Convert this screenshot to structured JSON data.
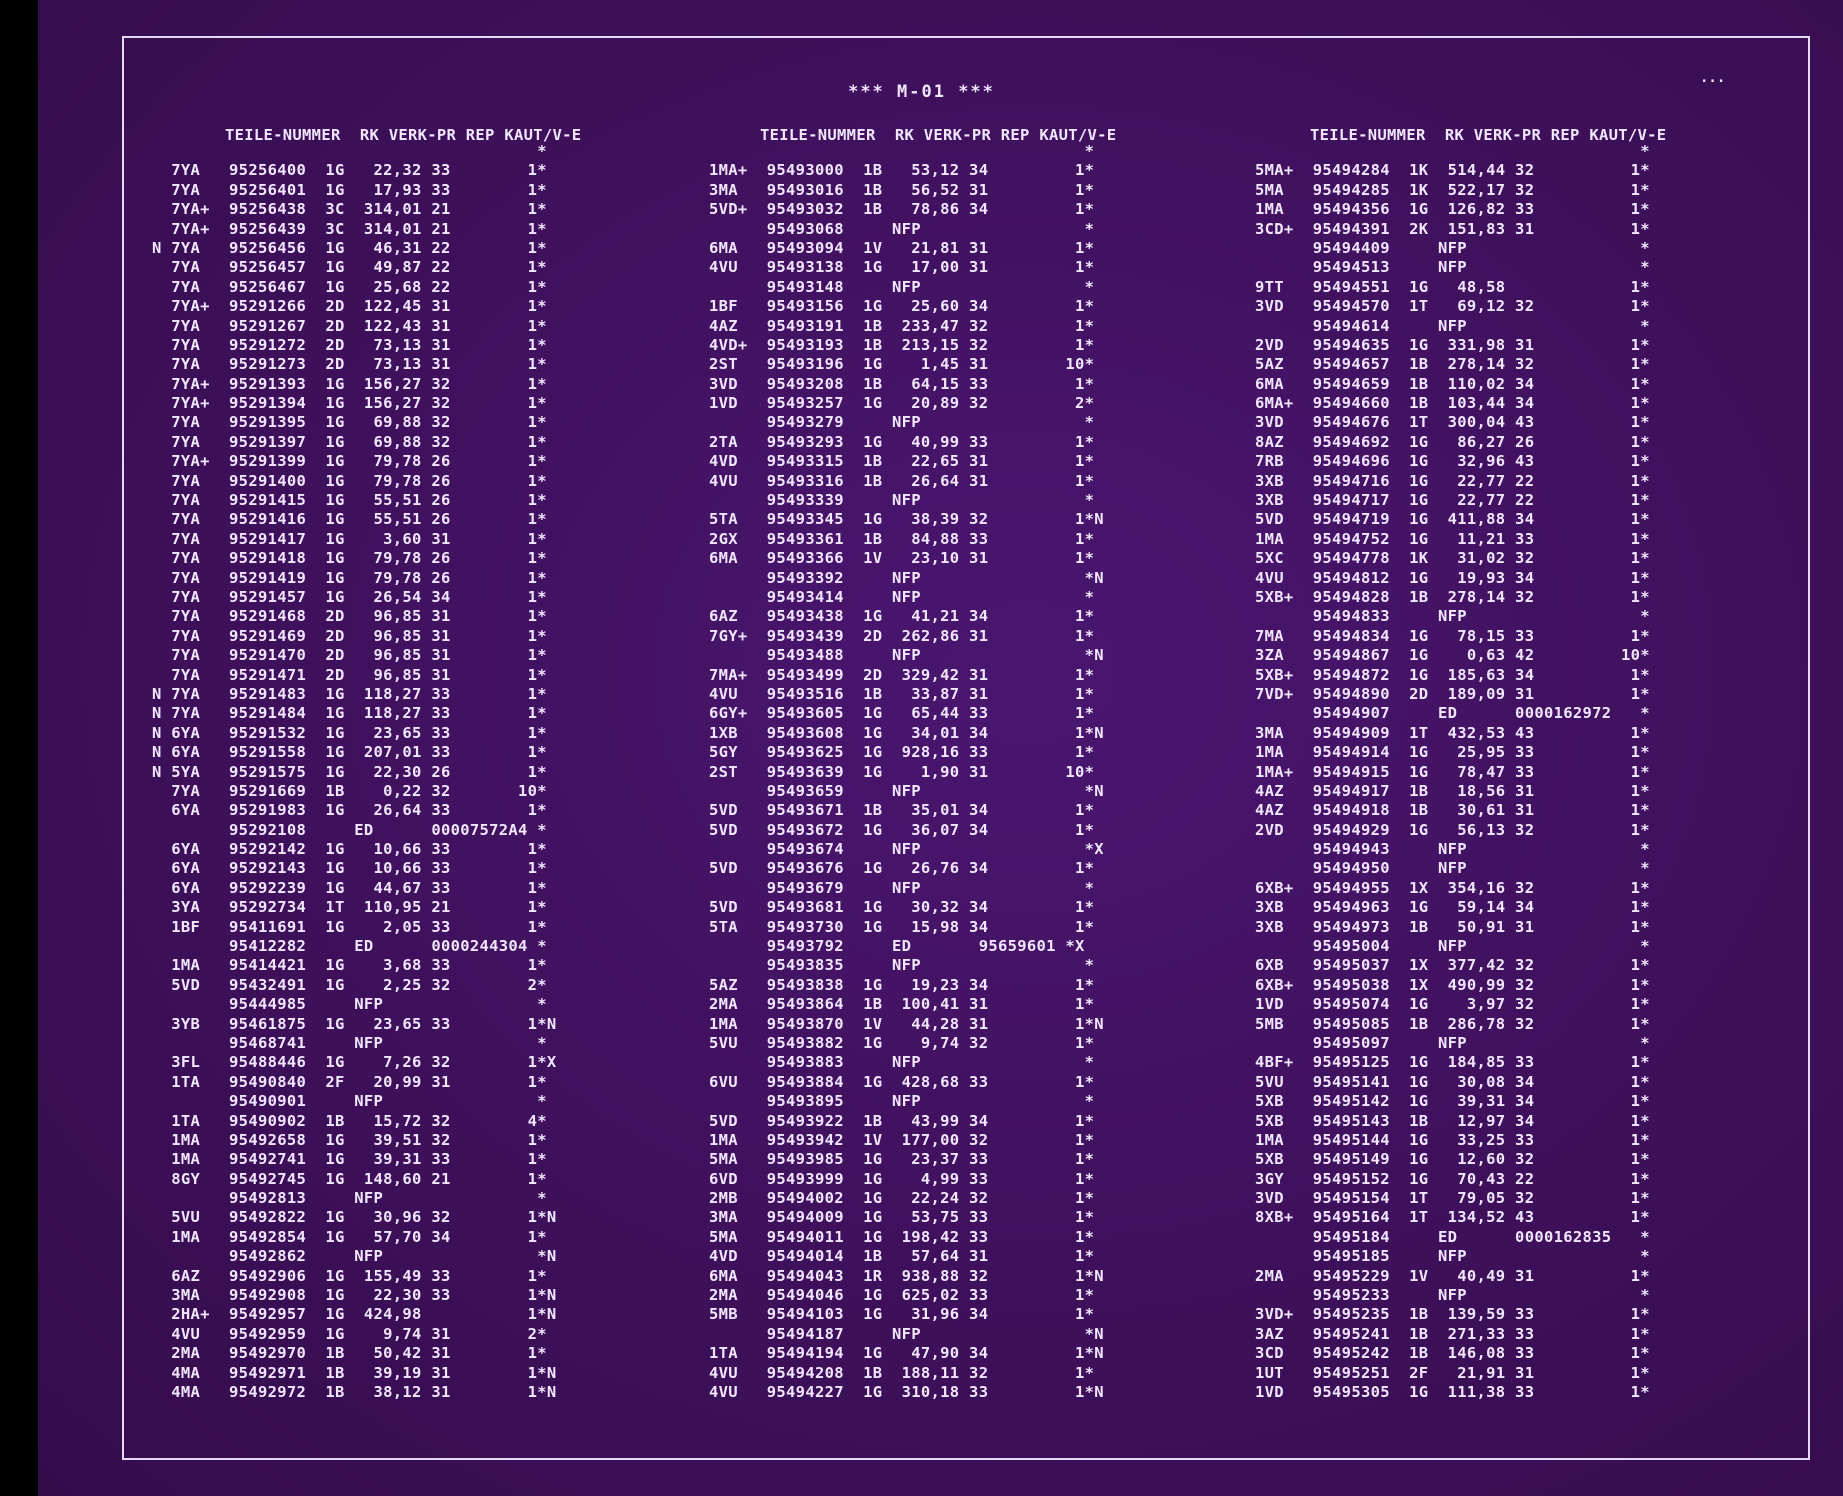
{
  "title": "*** M-01 ***",
  "headers": [
    "TEILE-NUMMER  RK VERK-PR REP KAUT/V-E",
    "TEILE-NUMMER  RK VERK-PR REP KAUT/V-E",
    "TEILE-NUMMER  RK VERK-PR REP KAUT/V-E"
  ],
  "columns": [
    {
      "rows": [
        "                                        *",
        "  7YA   95256400  1G   22,32 33        1*",
        "  7YA   95256401  1G   17,93 33        1*",
        "  7YA+  95256438  3C  314,01 21        1*",
        "  7YA+  95256439  3C  314,01 21        1*",
        "N 7YA   95256456  1G   46,31 22        1*",
        "  7YA   95256457  1G   49,87 22        1*",
        "  7YA   95256467  1G   25,68 22        1*",
        "  7YA+  95291266  2D  122,45 31        1*",
        "  7YA   95291267  2D  122,43 31        1*",
        "  7YA   95291272  2D   73,13 31        1*",
        "  7YA   95291273  2D   73,13 31        1*",
        "  7YA+  95291393  1G  156,27 32        1*",
        "  7YA+  95291394  1G  156,27 32        1*",
        "  7YA   95291395  1G   69,88 32        1*",
        "  7YA   95291397  1G   69,88 32        1*",
        "  7YA+  95291399  1G   79,78 26        1*",
        "  7YA   95291400  1G   79,78 26        1*",
        "  7YA   95291415  1G   55,51 26        1*",
        "  7YA   95291416  1G   55,51 26        1*",
        "  7YA   95291417  1G    3,60 31        1*",
        "  7YA   95291418  1G   79,78 26        1*",
        "  7YA   95291419  1G   79,78 26        1*",
        "  7YA   95291457  1G   26,54 34        1*",
        "  7YA   95291468  2D   96,85 31        1*",
        "  7YA   95291469  2D   96,85 31        1*",
        "  7YA   95291470  2D   96,85 31        1*",
        "  7YA   95291471  2D   96,85 31        1*",
        "N 7YA   95291483  1G  118,27 33        1*",
        "N 7YA   95291484  1G  118,27 33        1*",
        "N 6YA   95291532  1G   23,65 33        1*",
        "N 6YA   95291558  1G  207,01 33        1*",
        "N 5YA   95291575  1G   22,30 26        1*",
        "  7YA   95291669  1B    0,22 32       10*",
        "  6YA   95291983  1G   26,64 33        1*",
        "        95292108     ED      00007572A4 *",
        "  6YA   95292142  1G   10,66 33        1*",
        "  6YA   95292143  1G   10,66 33        1*",
        "  6YA   95292239  1G   44,67 33        1*",
        "  3YA   95292734  1T  110,95 21        1*",
        "  1BF   95411691  1G    2,05 33        1*",
        "        95412282     ED      0000244304 *",
        "  1MA   95414421  1G    3,68 33        1*",
        "  5VD   95432491  1G    2,25 32        2*",
        "        95444985     NFP                *",
        "  3YB   95461875  1G   23,65 33        1*N",
        "        95468741     NFP                *",
        "  3FL   95488446  1G    7,26 32        1*X",
        "  1TA   95490840  2F   20,99 31        1*",
        "        95490901     NFP                *",
        "  1TA   95490902  1B   15,72 32        4*",
        "  1MA   95492658  1G   39,51 32        1*",
        "  1MA   95492741  1G   39,31 33        1*",
        "  8GY   95492745  1G  148,60 21        1*",
        "        95492813     NFP                *",
        "  5VU   95492822  1G   30,96 32        1*N",
        "  1MA   95492854  1G   57,70 34        1*",
        "        95492862     NFP                *N",
        "  6AZ   95492906  1G  155,49 33        1*",
        "  3MA   95492908  1G   22,30 33        1*N",
        "  2HA+  95492957  1G  424,98           1*N",
        "  4VU   95492959  1G    9,74 31        2*",
        "  2MA   95492970  1B   50,42 31        1*",
        "  4MA   95492971  1B   39,19 31        1*N",
        "  4MA   95492972  1B   38,12 31        1*N"
      ]
    },
    {
      "rows": [
        "                                       *",
        "1MA+  95493000  1B   53,12 34         1*",
        "3MA   95493016  1B   56,52 31         1*",
        "5VD+  95493032  1B   78,86 34         1*",
        "      95493068     NFP                 *",
        "6MA   95493094  1V   21,81 31         1*",
        "4VU   95493138  1G   17,00 31         1*",
        "      95493148     NFP                 *",
        "1BF   95493156  1G   25,60 34         1*",
        "4AZ   95493191  1B  233,47 32         1*",
        "4VD+  95493193  1B  213,15 32         1*",
        "2ST   95493196  1G    1,45 31        10*",
        "3VD   95493208  1B   64,15 33         1*",
        "1VD   95493257  1G   20,89 32         2*",
        "      95493279     NFP                 *",
        "2TA   95493293  1G   40,99 33         1*",
        "4VD   95493315  1B   22,65 31         1*",
        "4VU   95493316  1B   26,64 31         1*",
        "      95493339     NFP                 *",
        "5TA   95493345  1G   38,39 32         1*N",
        "2GX   95493361  1B   84,88 33         1*",
        "6MA   95493366  1V   23,10 31         1*",
        "      95493392     NFP                 *N",
        "      95493414     NFP                 *",
        "6AZ   95493438  1G   41,21 34         1*",
        "7GY+  95493439  2D  262,86 31         1*",
        "      95493488     NFP                 *N",
        "7MA+  95493499  2D  329,42 31         1*",
        "4VU   95493516  1B   33,87 31         1*",
        "6GY+  95493605  1G   65,44 33         1*",
        "1XB   95493608  1G   34,01 34         1*N",
        "5GY   95493625  1G  928,16 33         1*",
        "2ST   95493639  1G    1,90 31        10*",
        "      95493659     NFP                 *N",
        "5VD   95493671  1B   35,01 34         1*",
        "5VD   95493672  1G   36,07 34         1*",
        "      95493674     NFP                 *X",
        "5VD   95493676  1G   26,76 34         1*",
        "      95493679     NFP                 *",
        "5VD   95493681  1G   30,32 34         1*",
        "5TA   95493730  1G   15,98 34         1*",
        "      95493792     ED       95659601 *X",
        "      95493835     NFP                 *",
        "5AZ   95493838  1G   19,23 34         1*",
        "2MA   95493864  1B  100,41 31         1*",
        "1MA   95493870  1V   44,28 31         1*N",
        "5VU   95493882  1G    9,74 32         1*",
        "      95493883     NFP                 *",
        "6VU   95493884  1G  428,68 33         1*",
        "      95493895     NFP                 *",
        "5VD   95493922  1B   43,99 34         1*",
        "1MA   95493942  1V  177,00 32         1*",
        "5MA   95493985  1G   23,37 33         1*",
        "6VD   95493999  1G    4,99 33         1*",
        "2MB   95494002  1G   22,24 32         1*",
        "3MA   95494009  1G   53,75 33         1*",
        "5MA   95494011  1G  198,42 33         1*",
        "4VD   95494014  1B   57,64 31         1*",
        "6MA   95494043  1R  938,88 32         1*N",
        "2MA   95494046  1G  625,02 33         1*",
        "5MB   95494103  1G   31,96 34         1*",
        "      95494187     NFP                 *N",
        "1TA   95494194  1G   47,90 34         1*N",
        "4VU   95494208  1B  188,11 32         1*",
        "4VU   95494227  1G  310,18 33         1*N"
      ]
    },
    {
      "rows": [
        "                                        *",
        "5MA+  95494284  1K  514,44 32          1*",
        "5MA   95494285  1K  522,17 32          1*",
        "1MA   95494356  1G  126,82 33          1*",
        "3CD+  95494391  2K  151,83 31          1*",
        "      95494409     NFP                  *",
        "      95494513     NFP                  *",
        "9TT   95494551  1G   48,58             1*",
        "3VD   95494570  1T   69,12 32          1*",
        "      95494614     NFP                  *",
        "2VD   95494635  1G  331,98 31          1*",
        "5AZ   95494657  1B  278,14 32          1*",
        "6MA   95494659  1B  110,02 34          1*",
        "6MA+  95494660  1B  103,44 34          1*",
        "3VD   95494676  1T  300,04 43          1*",
        "8AZ   95494692  1G   86,27 26          1*",
        "7RB   95494696  1G   32,96 43          1*",
        "3XB   95494716  1G   22,77 22          1*",
        "3XB   95494717  1G   22,77 22          1*",
        "5VD   95494719  1G  411,88 34          1*",
        "1MA   95494752  1G   11,21 33          1*",
        "5XC   95494778  1K   31,02 32          1*",
        "4VU   95494812  1G   19,93 34          1*",
        "5XB+  95494828  1B  278,14 32          1*",
        "      95494833     NFP                  *",
        "7MA   95494834  1G   78,15 33          1*",
        "3ZA   95494867  1G    0,63 42         10*",
        "5XB+  95494872  1G  185,63 34          1*",
        "7VD+  95494890  2D  189,09 31          1*",
        "      95494907     ED      0000162972   *",
        "3MA   95494909  1T  432,53 43          1*",
        "1MA   95494914  1G   25,95 33          1*",
        "1MA+  95494915  1G   78,47 33          1*",
        "4AZ   95494917  1B   18,56 31          1*",
        "4AZ   95494918  1B   30,61 31          1*",
        "2VD   95494929  1G   56,13 32          1*",
        "      95494943     NFP                  *",
        "      95494950     NFP                  *",
        "6XB+  95494955  1X  354,16 32          1*",
        "3XB   95494963  1G   59,14 34          1*",
        "3XB   95494973  1B   50,91 31          1*",
        "      95495004     NFP                  *",
        "6XB   95495037  1X  377,42 32          1*",
        "6XB+  95495038  1X  490,99 32          1*",
        "1VD   95495074  1G    3,97 32          1*",
        "5MB   95495085  1B  286,78 32          1*",
        "      95495097     NFP                  *",
        "4BF+  95495125  1G  184,85 33          1*",
        "5VU   95495141  1G   30,08 34          1*",
        "5XB   95495142  1G   39,31 34          1*",
        "5XB   95495143  1B   12,97 34          1*",
        "1MA   95495144  1G   33,25 33          1*",
        "5XB   95495149  1G   12,60 32          1*",
        "3GY   95495152  1G   70,43 22          1*",
        "3VD   95495154  1T   79,05 32          1*",
        "8XB+  95495164  1T  134,52 43          1*",
        "      95495184     ED      0000162835   *",
        "      95495185     NFP                  *",
        "2MA   95495229  1V   40,49 31          1*",
        "      95495233     NFP                  *",
        "3VD+  95495235  1B  139,59 33          1*",
        "3AZ   95495241  1B  271,33 33          1*",
        "3CD   95495242  1B  146,08 33          1*",
        "1UT   95495251  2F   21,91 31          1*",
        "1VD   95495305  1G  111,38 33          1*"
      ]
    }
  ],
  "scribble_note": "..."
}
